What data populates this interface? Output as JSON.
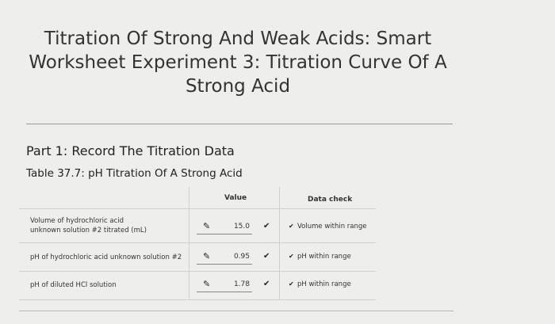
{
  "header": {
    "title": "Titration Of Strong And Weak Acids: Smart Worksheet Experiment 3: Titration Curve Of A Strong Acid"
  },
  "section": {
    "heading": "Part 1: Record The Titration Data",
    "caption": "Table 37.7: pH Titration Of A Strong Acid"
  },
  "table": {
    "columns": [
      "Value",
      "Data check"
    ],
    "rows": [
      [
        "Volume of hydrochloric acid unknown solution #2 titrated (mL)",
        "15.0",
        "Volume within range"
      ],
      [
        "pH of hydrochloric acid unknown solution #2",
        "0.95",
        "pH within range"
      ],
      [
        "pH of diluted HCl solution",
        "1.78",
        "pH within range"
      ]
    ]
  }
}
